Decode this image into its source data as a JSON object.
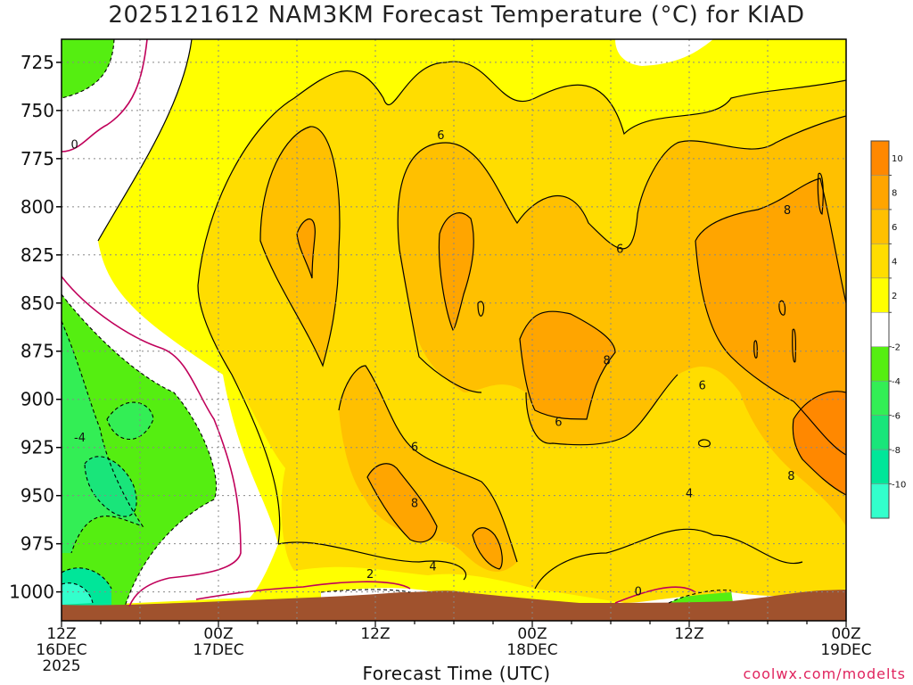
{
  "title": "2025121612 NAM3KM Forecast Temperature (°C) for KIAD",
  "credit": "coolwx.com/modelts",
  "chart_data": {
    "type": "heatmap",
    "title": "2025121612 NAM3KM Forecast Temperature (°C) for KIAD",
    "xlabel": "Forecast Time (UTC)",
    "ylabel": "",
    "x_range_hours": [
      0,
      60
    ],
    "y_range_hpa": [
      1015,
      713
    ],
    "y_ticks": [
      725,
      750,
      775,
      800,
      825,
      850,
      875,
      900,
      925,
      950,
      975,
      1000
    ],
    "x_ticks": [
      {
        "hour": 0,
        "lines": [
          "12Z",
          "16DEC",
          "2025"
        ]
      },
      {
        "hour": 12,
        "lines": [
          "00Z",
          "17DEC"
        ]
      },
      {
        "hour": 24,
        "lines": [
          "12Z"
        ]
      },
      {
        "hour": 36,
        "lines": [
          "00Z",
          "18DEC"
        ]
      },
      {
        "hour": 48,
        "lines": [
          "12Z"
        ]
      },
      {
        "hour": 60,
        "lines": [
          "00Z",
          "19DEC"
        ]
      }
    ],
    "grid": true,
    "colorbar": {
      "position": "right",
      "bins": [
        {
          "from": -12,
          "to": -10,
          "color": "#33ffcc"
        },
        {
          "from": -10,
          "to": -8,
          "color": "#00e699"
        },
        {
          "from": -8,
          "to": -6,
          "color": "#19e57a"
        },
        {
          "from": -6,
          "to": -4,
          "color": "#33ee55"
        },
        {
          "from": -4,
          "to": -2,
          "color": "#55ee11"
        },
        {
          "from": -2,
          "to": 2,
          "color": "#ffffff"
        },
        {
          "from": 2,
          "to": 4,
          "color": "#ffff00"
        },
        {
          "from": 4,
          "to": 6,
          "color": "#ffdd00"
        },
        {
          "from": 6,
          "to": 8,
          "color": "#ffc000"
        },
        {
          "from": 8,
          "to": 10,
          "color": "#ffa500"
        },
        {
          "from": 10,
          "to": 12,
          "color": "#ff8800"
        }
      ],
      "tick_labels": [
        "10",
        "8",
        "6",
        "4",
        "2",
        "-2",
        "-4",
        "-6",
        "-8",
        "-10"
      ]
    },
    "contour_labels": [
      {
        "hour": 1.0,
        "hpa": 768,
        "text": "0"
      },
      {
        "hour": 1.4,
        "hpa": 920,
        "text": "-4"
      },
      {
        "hour": 23.6,
        "hpa": 991,
        "text": "2"
      },
      {
        "hour": 28.4,
        "hpa": 987,
        "text": "4"
      },
      {
        "hour": 27.0,
        "hpa": 925,
        "text": "6"
      },
      {
        "hour": 27.0,
        "hpa": 954,
        "text": "8"
      },
      {
        "hour": 29.0,
        "hpa": 763,
        "text": "6"
      },
      {
        "hour": 42.7,
        "hpa": 822,
        "text": "6"
      },
      {
        "hour": 41.7,
        "hpa": 880,
        "text": "8"
      },
      {
        "hour": 38.0,
        "hpa": 912,
        "text": "6"
      },
      {
        "hour": 49.0,
        "hpa": 893,
        "text": "6"
      },
      {
        "hour": 48.0,
        "hpa": 949,
        "text": "4"
      },
      {
        "hour": 55.5,
        "hpa": 802,
        "text": "8"
      },
      {
        "hour": 55.8,
        "hpa": 940,
        "text": "8"
      },
      {
        "hour": 44.1,
        "hpa": 1000,
        "text": "0"
      }
    ]
  }
}
